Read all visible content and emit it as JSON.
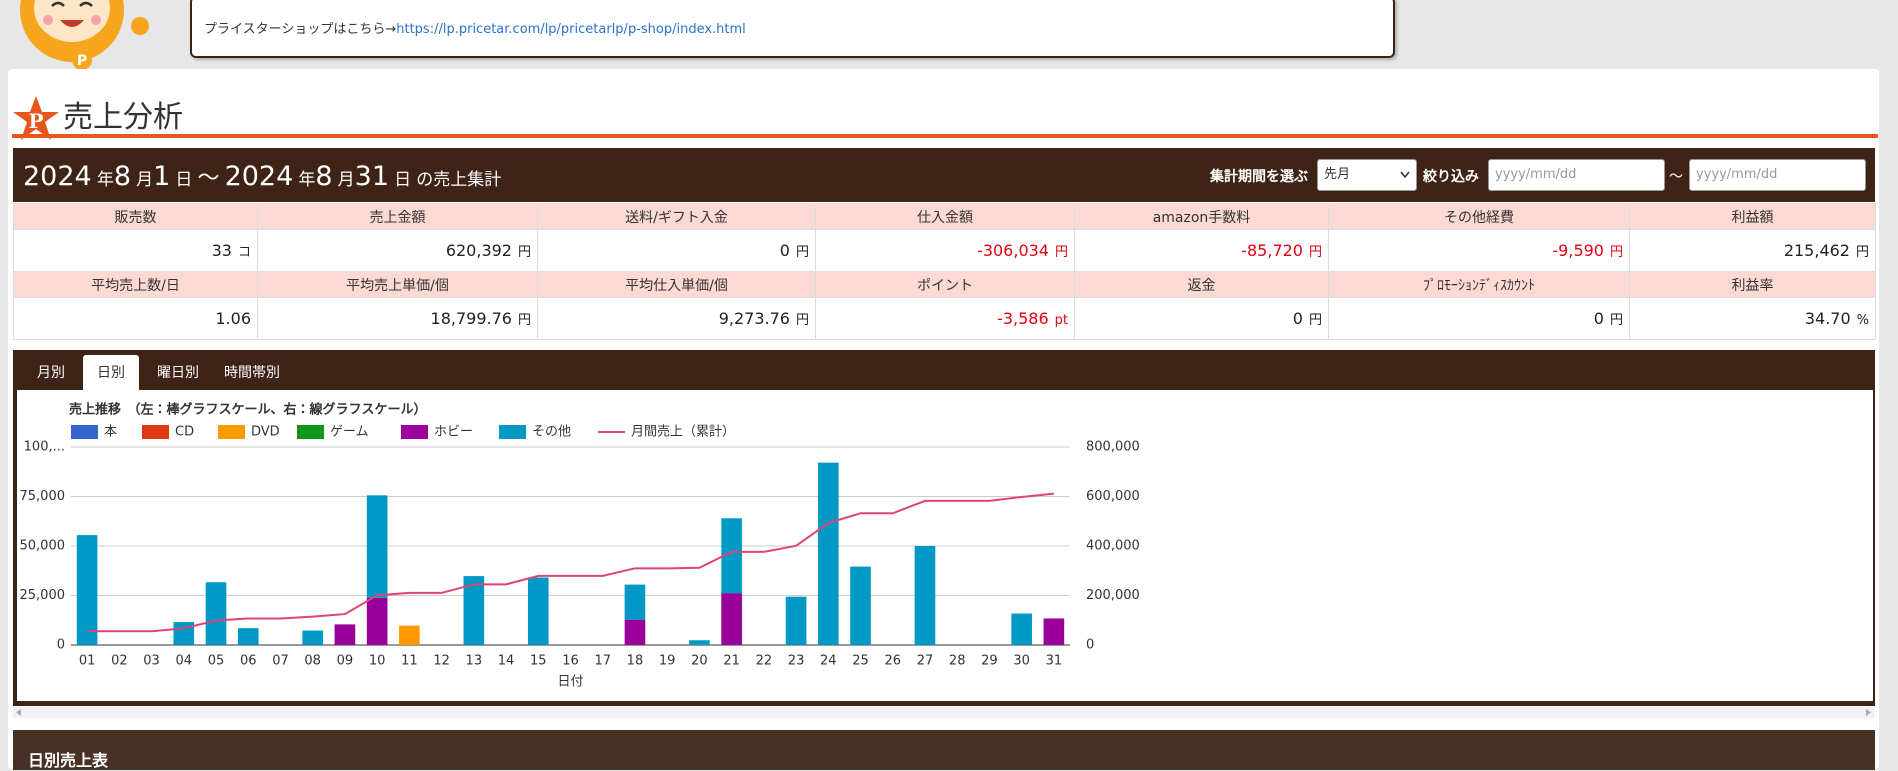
{
  "notice": {
    "text": "プライスターショップはこちら→",
    "link": "https://lp.pricetar.com/lp/pricetarlp/p-shop/index.html"
  },
  "page_title": "売上分析",
  "period": {
    "start_year": "2024",
    "year_unit": "年",
    "start_month": "8",
    "month_unit": "月",
    "start_day": "1",
    "day_unit": "日",
    "separator": "～",
    "end_year": "2024",
    "end_month": "8",
    "end_day": "31",
    "suffix": "の売上集計"
  },
  "filters": {
    "period_label": "集計期間を選ぶ",
    "period_value": "先月",
    "narrow_label": "絞り込み",
    "from_placeholder": "yyyy/mm/dd",
    "tilde": "～",
    "to_placeholder": "yyyy/mm/dd"
  },
  "stats": {
    "rows": [
      {
        "headers": [
          "販売数",
          "売上金額",
          "送料/ギフト入金",
          "仕入金額",
          "amazon手数料",
          "その他経費",
          "利益額"
        ],
        "values": [
          "33",
          "620,392",
          "0",
          "-306,034",
          "-85,720",
          "-9,590",
          "215,462"
        ],
        "units": [
          "コ",
          "円",
          "円",
          "円",
          "円",
          "円",
          "円"
        ]
      },
      {
        "headers": [
          "平均売上数/日",
          "平均売上単価/個",
          "平均仕入単価/個",
          "ポイント",
          "返金",
          "ﾌﾟﾛﾓｰｼｮﾝﾃﾞｨｽｶｳﾝﾄ",
          "利益率"
        ],
        "values": [
          "1.06",
          "18,799.76",
          "9,273.76",
          "-3,586",
          "0",
          "0",
          "34.70"
        ],
        "units": [
          null,
          "円",
          "円",
          "pt",
          "円",
          "円",
          "%"
        ]
      }
    ]
  },
  "tabs": [
    "月別",
    "日別",
    "曜日別",
    "時間帯別"
  ],
  "active_tab": 1,
  "chart_data": {
    "type": "bar",
    "title": "売上推移　（左：棒グラフスケール、右：線グラフスケール）",
    "x_label": "日付",
    "categories": [
      "01",
      "02",
      "03",
      "04",
      "05",
      "06",
      "07",
      "08",
      "09",
      "10",
      "11",
      "12",
      "13",
      "14",
      "15",
      "16",
      "17",
      "18",
      "19",
      "20",
      "21",
      "22",
      "23",
      "24",
      "25",
      "26",
      "27",
      "28",
      "29",
      "30",
      "31"
    ],
    "series": [
      {
        "name": "本",
        "color": "#3366cc",
        "values": [
          0,
          0,
          0,
          0,
          0,
          0,
          0,
          0,
          0,
          0,
          0,
          0,
          0,
          0,
          0,
          0,
          0,
          0,
          0,
          0,
          0,
          0,
          0,
          0,
          0,
          0,
          0,
          0,
          0,
          0,
          0
        ]
      },
      {
        "name": "CD",
        "color": "#dc3912",
        "values": [
          0,
          0,
          0,
          0,
          0,
          0,
          0,
          0,
          0,
          0,
          0,
          0,
          0,
          0,
          0,
          0,
          0,
          0,
          0,
          0,
          0,
          0,
          0,
          0,
          0,
          0,
          0,
          0,
          0,
          0,
          0
        ]
      },
      {
        "name": "DVD",
        "color": "#ff9900",
        "values": [
          0,
          0,
          0,
          0,
          0,
          0,
          0,
          0,
          0,
          0,
          9800,
          0,
          0,
          0,
          0,
          0,
          0,
          0,
          0,
          0,
          0,
          0,
          0,
          0,
          0,
          0,
          0,
          0,
          0,
          0,
          0
        ]
      },
      {
        "name": "ゲーム",
        "color": "#109618",
        "values": [
          0,
          0,
          0,
          0,
          0,
          0,
          0,
          0,
          0,
          0,
          0,
          0,
          0,
          0,
          0,
          0,
          0,
          0,
          0,
          0,
          0,
          0,
          0,
          0,
          0,
          0,
          0,
          0,
          0,
          0,
          0
        ]
      },
      {
        "name": "ホビー",
        "color": "#990099",
        "values": [
          0,
          0,
          0,
          0,
          0,
          0,
          0,
          0,
          10400,
          23800,
          0,
          0,
          0,
          0,
          0,
          0,
          0,
          12800,
          0,
          0,
          26200,
          0,
          0,
          0,
          0,
          0,
          0,
          0,
          0,
          0,
          13400
        ]
      },
      {
        "name": "その他",
        "color": "#0099c6",
        "values": [
          55500,
          0,
          0,
          11600,
          31700,
          8500,
          0,
          7300,
          0,
          51800,
          0,
          0,
          34800,
          0,
          34100,
          0,
          0,
          17700,
          0,
          2400,
          37800,
          0,
          24400,
          92100,
          39600,
          0,
          50000,
          0,
          0,
          15900,
          0
        ]
      },
      {
        "name": "月間売上（累計）",
        "color": "#dd4477",
        "type": "line",
        "axis": "y2",
        "values": [
          55500,
          55500,
          55500,
          67100,
          98800,
          107300,
          107300,
          114600,
          125000,
          200600,
          210400,
          210400,
          245200,
          245200,
          279300,
          279300,
          279300,
          309800,
          309800,
          312200,
          376200,
          376200,
          400600,
          492700,
          532300,
          532300,
          582300,
          582300,
          582300,
          598200,
          611600
        ]
      }
    ],
    "ylim": [
      0,
      100000
    ],
    "yticks": [
      0,
      {
        "value": 25000,
        "label": "25,000"
      },
      {
        "value": 50000,
        "label": "50,000"
      },
      {
        "value": 75000,
        "label": "75,000"
      },
      {
        "value": 100000,
        "label": "100,..."
      }
    ],
    "y2lim": [
      0,
      800000
    ],
    "y2ticks": [
      0,
      {
        "value": 200000,
        "label": "200,000"
      },
      {
        "value": 400000,
        "label": "400,000"
      },
      {
        "value": 600000,
        "label": "600,000"
      },
      {
        "value": 800000,
        "label": "800,000"
      }
    ],
    "grid": true
  },
  "section_title": "日別売上表"
}
